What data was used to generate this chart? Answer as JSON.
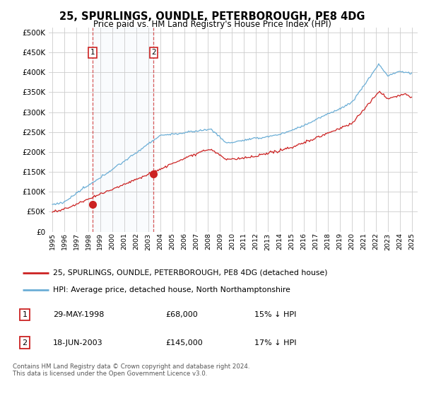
{
  "title": "25, SPURLINGS, OUNDLE, PETERBOROUGH, PE8 4DG",
  "subtitle": "Price paid vs. HM Land Registry's House Price Index (HPI)",
  "legend_line1": "25, SPURLINGS, OUNDLE, PETERBOROUGH, PE8 4DG (detached house)",
  "legend_line2": "HPI: Average price, detached house, North Northamptonshire",
  "sale1_date": "29-MAY-1998",
  "sale1_price": "£68,000",
  "sale1_hpi": "15% ↓ HPI",
  "sale2_date": "18-JUN-2003",
  "sale2_price": "£145,000",
  "sale2_hpi": "17% ↓ HPI",
  "footer": "Contains HM Land Registry data © Crown copyright and database right 2024.\nThis data is licensed under the Open Government Licence v3.0.",
  "hpi_color": "#6baed6",
  "price_color": "#cc2222",
  "background_color": "#ffffff",
  "grid_color": "#cccccc",
  "yticks": [
    0,
    50000,
    100000,
    150000,
    200000,
    250000,
    300000,
    350000,
    400000,
    450000,
    500000
  ],
  "xlim_start": 1994.7,
  "xlim_end": 2025.5,
  "sale1_x": 1998.38,
  "sale1_y": 68000,
  "sale2_x": 2003.46,
  "sale2_y": 145000
}
